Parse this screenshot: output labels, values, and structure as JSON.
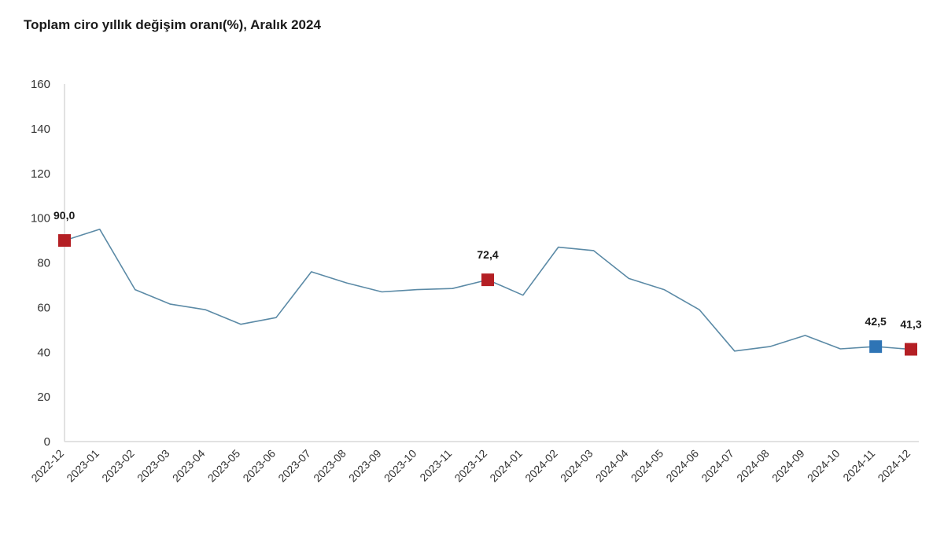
{
  "chart_data": {
    "type": "line",
    "title": "Toplam ciro yıllık değişim oranı(%), Aralık 2024",
    "xlabel": "",
    "ylabel": "",
    "ylim": [
      0,
      160
    ],
    "yticks": [
      "0",
      "20",
      "40",
      "60",
      "80",
      "100",
      "120",
      "140",
      "160"
    ],
    "grid": false,
    "categories": [
      "2022-12",
      "2023-01",
      "2023-02",
      "2023-03",
      "2023-04",
      "2023-05",
      "2023-06",
      "2023-07",
      "2023-08",
      "2023-09",
      "2023-10",
      "2023-11",
      "2023-12",
      "2024-01",
      "2024-02",
      "2024-03",
      "2024-04",
      "2024-05",
      "2024-06",
      "2024-07",
      "2024-08",
      "2024-09",
      "2024-10",
      "2024-11",
      "2024-12"
    ],
    "series": [
      {
        "values": [
          90.0,
          95.0,
          68.0,
          61.5,
          59.0,
          52.5,
          55.5,
          76.0,
          71.0,
          67.0,
          68.0,
          68.5,
          72.4,
          65.5,
          87.0,
          85.5,
          73.0,
          68.0,
          59.0,
          40.5,
          42.5,
          47.5,
          41.5,
          42.5,
          41.3
        ],
        "color": "#5b8aa6"
      }
    ],
    "highlighted_points": [
      {
        "category": "2022-12",
        "value": 90.0,
        "label": "90,0",
        "color": "#b41f24"
      },
      {
        "category": "2023-12",
        "value": 72.4,
        "label": "72,4",
        "color": "#b41f24"
      },
      {
        "category": "2024-11",
        "value": 42.5,
        "label": "42,5",
        "color": "#2e74b5"
      },
      {
        "category": "2024-12",
        "value": 41.3,
        "label": "41,3",
        "color": "#b41f24"
      }
    ],
    "axis_color": "#d9d9d9"
  }
}
